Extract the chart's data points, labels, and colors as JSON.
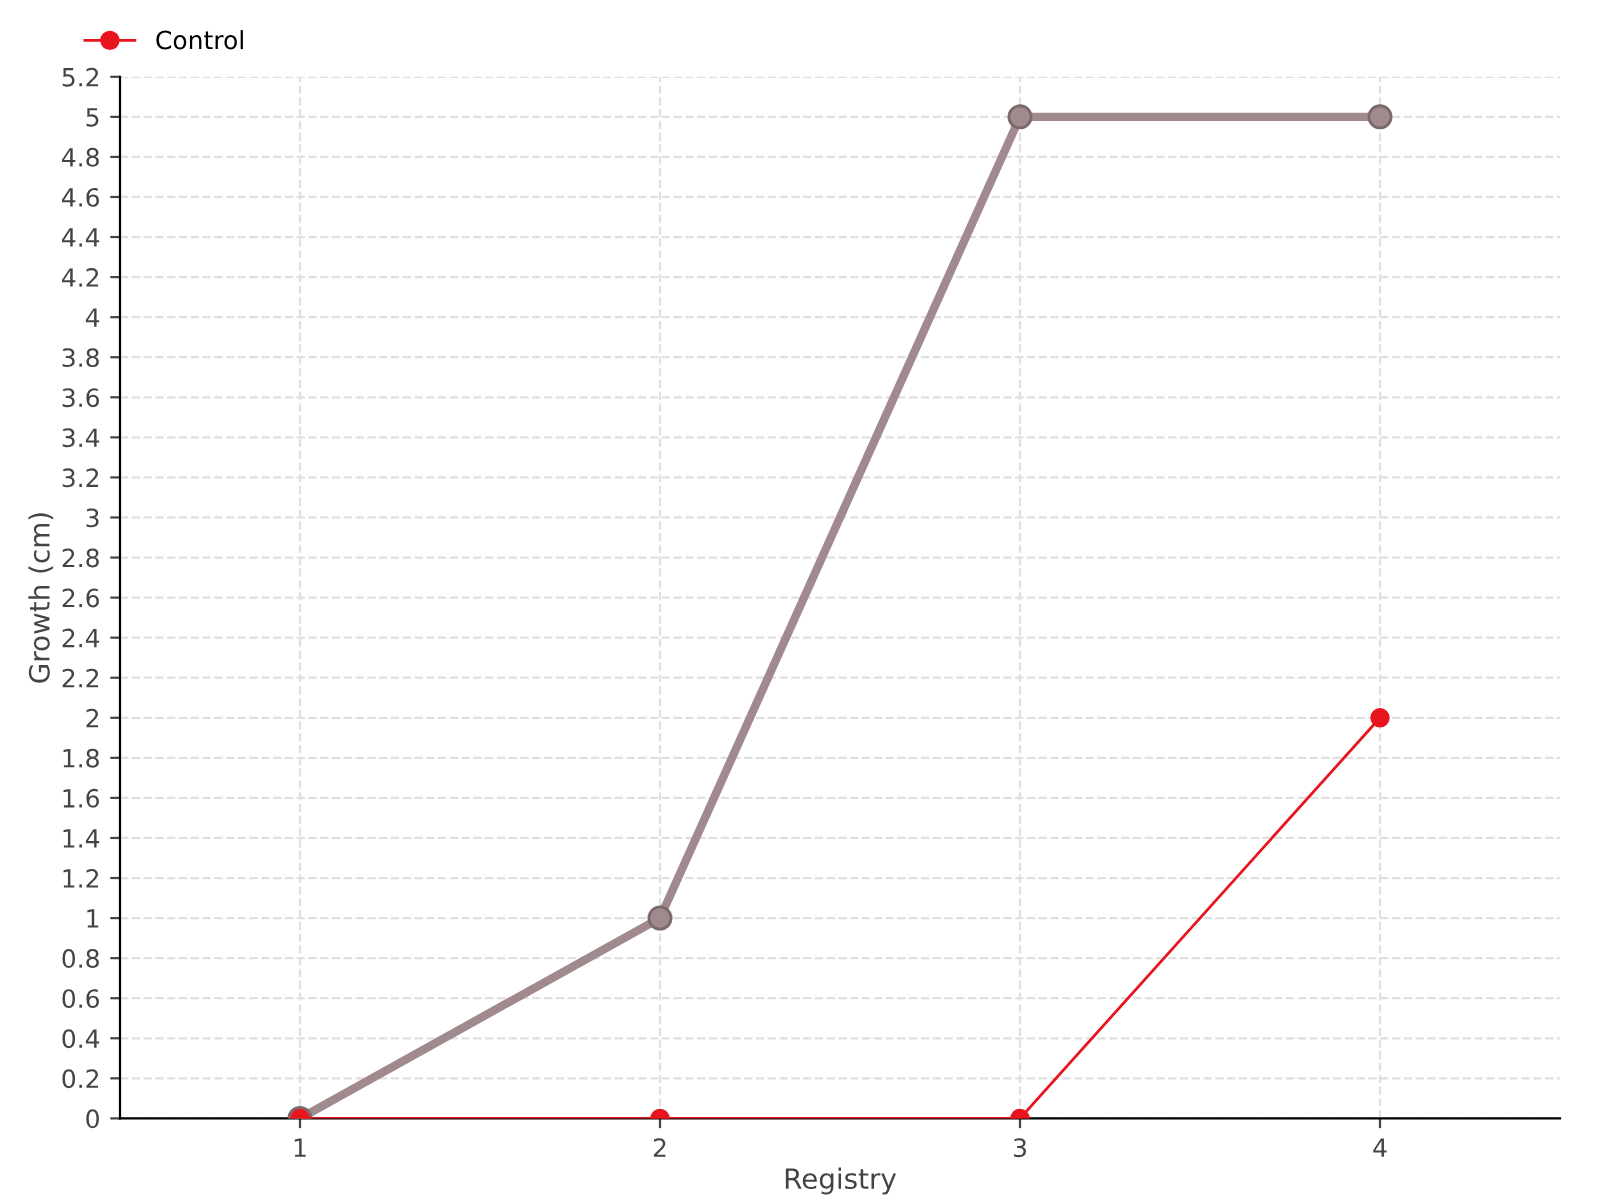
{
  "chart_data": {
    "type": "line",
    "xlabel": "Registry",
    "ylabel": "Growth (cm)",
    "categories": [
      "1",
      "2",
      "3",
      "4"
    ],
    "series": [
      {
        "color": "#a08a8e",
        "values": [
          0,
          1,
          5,
          5
        ]
      },
      {
        "name": "Control",
        "color": "#e8141e",
        "values": [
          0,
          0,
          0,
          2
        ]
      }
    ],
    "ylim": [
      0,
      5.2
    ],
    "yticks": [
      0,
      0.2,
      0.4,
      0.6,
      0.8,
      1,
      1.2,
      1.4,
      1.6,
      1.8,
      2,
      2.2,
      2.4,
      2.6,
      2.8,
      3,
      3.2,
      3.4,
      3.6,
      3.8,
      4,
      4.2,
      4.4,
      4.6,
      4.8,
      5,
      5.2
    ],
    "grid": true,
    "legend": "top left",
    "marker": "circle",
    "line_style": "solid"
  }
}
